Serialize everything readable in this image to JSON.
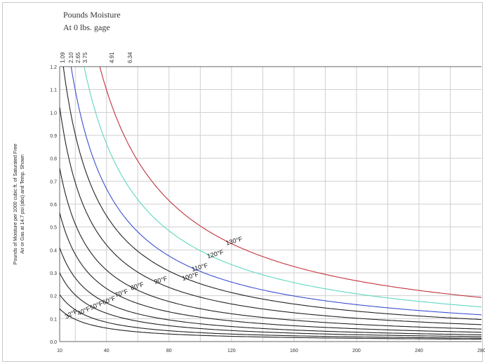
{
  "header": {
    "line1": "Pounds Moisture",
    "line2": "At 0 lbs. gage"
  },
  "chart_data": {
    "type": "line",
    "ylabel_line1": "Pounds of Moisture per 1000 cubic ft. of Saturated Free",
    "ylabel_line2": "Air or Gas at 14.7 psi (abs) and Temp. Shown",
    "xlabel": "",
    "xlim": [
      10,
      280
    ],
    "ylim": [
      0,
      1.2
    ],
    "x_ticks": [
      "10",
      "40",
      "80",
      "120",
      "160",
      "200",
      "240",
      "280"
    ],
    "y_ticks": [
      "0.0",
      "0.1",
      "0.2",
      "0.3",
      "0.4",
      "0.5",
      "0.6",
      "0.7",
      "0.8",
      "0.9",
      "1.0",
      "1.1",
      "1.2"
    ],
    "top_ticks": [
      "1.09",
      "2.10",
      "2.65",
      "3.75",
      "4.91",
      "6.34"
    ],
    "grid": true,
    "series": [
      {
        "name": "32°F",
        "k": 3.0,
        "color": "#222222"
      },
      {
        "name": "40°F",
        "k": 4.3,
        "color": "#222222"
      },
      {
        "name": "50°F",
        "k": 6.3,
        "color": "#222222"
      },
      {
        "name": "60°F",
        "k": 8.6,
        "color": "#222222"
      },
      {
        "name": "70°F",
        "k": 11.8,
        "color": "#222222"
      },
      {
        "name": "80°F",
        "k": 15.9,
        "color": "#222222"
      },
      {
        "name": "90°F",
        "k": 21.5,
        "color": "#222222"
      },
      {
        "name": "100°F",
        "k": 28.0,
        "color": "#222222"
      },
      {
        "name": "110°F",
        "k": 34.0,
        "color": "#3a4fd0"
      },
      {
        "name": "120°F",
        "k": 44.0,
        "color": "#5fd6c0"
      },
      {
        "name": "130°F",
        "k": 56.0,
        "color": "#c0333a"
      }
    ],
    "curve_labels": [
      {
        "series": 0,
        "x": 18,
        "angle": -55
      },
      {
        "series": 1,
        "x": 26,
        "angle": -50
      },
      {
        "series": 2,
        "x": 34,
        "angle": -45
      },
      {
        "series": 3,
        "x": 42,
        "angle": -42
      },
      {
        "series": 4,
        "x": 50,
        "angle": -38
      },
      {
        "series": 5,
        "x": 60,
        "angle": -35
      },
      {
        "series": 6,
        "x": 75,
        "angle": -33
      },
      {
        "series": 7,
        "x": 94,
        "angle": -32
      },
      {
        "series": 8,
        "x": 100,
        "angle": -30
      },
      {
        "series": 9,
        "x": 110,
        "angle": -32
      },
      {
        "series": 10,
        "x": 122,
        "angle": -32
      }
    ]
  }
}
